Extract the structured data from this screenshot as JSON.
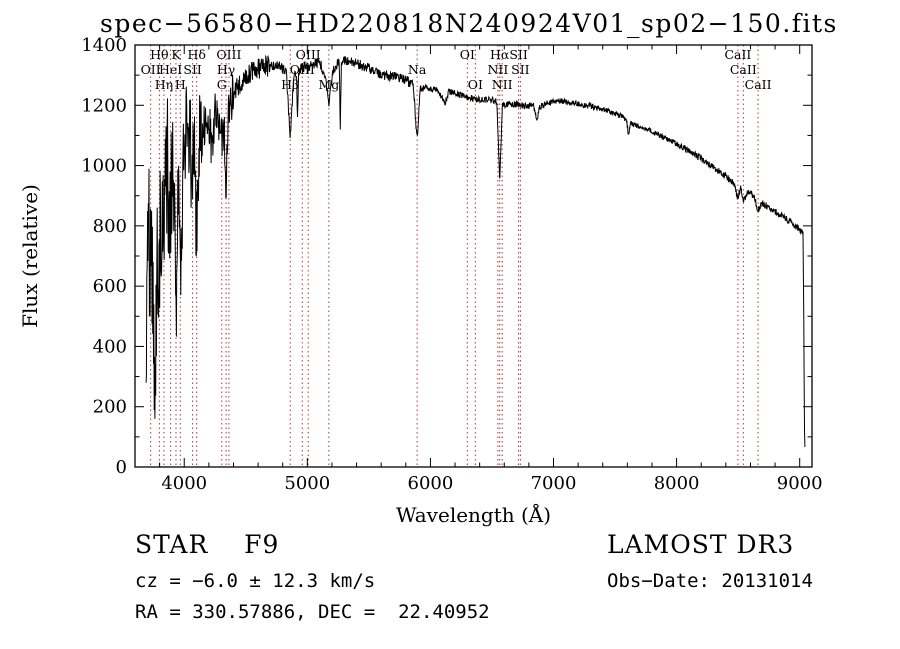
{
  "chart_data": {
    "type": "line",
    "title": "spec−56580−HD220818N240924V01_sp02−150.fits",
    "xlabel": "Wavelength (Å)",
    "ylabel": "Flux (relative)",
    "xlim": [
      3600,
      9100
    ],
    "ylim": [
      0,
      1400
    ],
    "xticks": [
      4000,
      5000,
      6000,
      7000,
      8000,
      9000
    ],
    "yticks": [
      0,
      200,
      400,
      600,
      800,
      1000,
      1200,
      1400
    ],
    "x_minor_step": 200,
    "y_minor_step": 100,
    "grid": false,
    "legend": false,
    "line_color": "#000000",
    "spectral_line_color": "#a83a3a",
    "spectral_lines": [
      {
        "wavelength": 3727,
        "label": "OII",
        "row": 2
      },
      {
        "wavelength": 3798,
        "label": "Hθ",
        "row": 1
      },
      {
        "wavelength": 3835,
        "label": "Hη",
        "row": 3
      },
      {
        "wavelength": 3889,
        "label": "HeI",
        "row": 2
      },
      {
        "wavelength": 3933,
        "label": "K",
        "row": 1
      },
      {
        "wavelength": 3968,
        "label": "H",
        "row": 3
      },
      {
        "wavelength": 4068,
        "label": "SII",
        "row": 2
      },
      {
        "wavelength": 4101,
        "label": "Hδ",
        "row": 1
      },
      {
        "wavelength": 4305,
        "label": "G",
        "row": 3
      },
      {
        "wavelength": 4340,
        "label": "Hγ",
        "row": 2
      },
      {
        "wavelength": 4363,
        "label": "OIII",
        "row": 1
      },
      {
        "wavelength": 4861,
        "label": "Hβ",
        "row": 3
      },
      {
        "wavelength": 4959,
        "label": "OIII",
        "row": 2
      },
      {
        "wavelength": 5007,
        "label": "OIII",
        "row": 1
      },
      {
        "wavelength": 5175,
        "label": "Mg",
        "row": 3
      },
      {
        "wavelength": 5892,
        "label": "Na",
        "row": 2
      },
      {
        "wavelength": 6300,
        "label": "OI",
        "row": 1
      },
      {
        "wavelength": 6365,
        "label": "OI",
        "row": 3
      },
      {
        "wavelength": 6548,
        "label": "NII",
        "row": 2
      },
      {
        "wavelength": 6563,
        "label": "Hα",
        "row": 1
      },
      {
        "wavelength": 6583,
        "label": "NII",
        "row": 3
      },
      {
        "wavelength": 6716,
        "label": "SII",
        "row": 1
      },
      {
        "wavelength": 6731,
        "label": "SII",
        "row": 2
      },
      {
        "wavelength": 8498,
        "label": "CaII",
        "row": 1
      },
      {
        "wavelength": 8542,
        "label": "CaII",
        "row": 2
      },
      {
        "wavelength": 8662,
        "label": "CaII",
        "row": 3
      }
    ],
    "noise_regions": [
      {
        "from": 3690,
        "to": 3900,
        "amp": 250
      },
      {
        "from": 3900,
        "to": 4150,
        "amp": 170
      },
      {
        "from": 4150,
        "to": 4400,
        "amp": 75
      },
      {
        "from": 4400,
        "to": 4700,
        "amp": 35
      },
      {
        "from": 4700,
        "to": 5900,
        "amp": 17
      },
      {
        "from": 5900,
        "to": 7000,
        "amp": 11
      },
      {
        "from": 7000,
        "to": 8000,
        "amp": 9
      },
      {
        "from": 8000,
        "to": 9045,
        "amp": 11
      }
    ],
    "spectrum": [
      [
        3690,
        500
      ],
      [
        3715,
        760
      ],
      [
        3740,
        560
      ],
      [
        3762,
        320
      ],
      [
        3780,
        640
      ],
      [
        3798,
        700
      ],
      [
        3815,
        900
      ],
      [
        3835,
        780
      ],
      [
        3855,
        1020
      ],
      [
        3875,
        950
      ],
      [
        3889,
        840
      ],
      [
        3910,
        1060
      ],
      [
        3933,
        520
      ],
      [
        3950,
        930
      ],
      [
        3968,
        560
      ],
      [
        3990,
        1010
      ],
      [
        4020,
        1130
      ],
      [
        4045,
        1090
      ],
      [
        4068,
        960
      ],
      [
        4085,
        1040
      ],
      [
        4101,
        760
      ],
      [
        4125,
        1090
      ],
      [
        4160,
        1130
      ],
      [
        4200,
        1160
      ],
      [
        4226,
        1040
      ],
      [
        4250,
        1170
      ],
      [
        4290,
        1140
      ],
      [
        4305,
        1080
      ],
      [
        4325,
        1120
      ],
      [
        4340,
        930
      ],
      [
        4360,
        1180
      ],
      [
        4400,
        1240
      ],
      [
        4450,
        1270
      ],
      [
        4500,
        1295
      ],
      [
        4560,
        1315
      ],
      [
        4620,
        1325
      ],
      [
        4700,
        1332
      ],
      [
        4780,
        1332
      ],
      [
        4830,
        1305
      ],
      [
        4861,
        1090
      ],
      [
        4890,
        1300
      ],
      [
        4912,
        1310
      ],
      [
        4920,
        1150
      ],
      [
        4930,
        1310
      ],
      [
        4957,
        1330
      ],
      [
        5010,
        1325
      ],
      [
        5060,
        1340
      ],
      [
        5110,
        1335
      ],
      [
        5140,
        1300
      ],
      [
        5167,
        1240
      ],
      [
        5175,
        1210
      ],
      [
        5185,
        1250
      ],
      [
        5210,
        1320
      ],
      [
        5260,
        1345
      ],
      [
        5268,
        1130
      ],
      [
        5276,
        1340
      ],
      [
        5320,
        1350
      ],
      [
        5380,
        1340
      ],
      [
        5440,
        1332
      ],
      [
        5500,
        1322
      ],
      [
        5560,
        1312
      ],
      [
        5620,
        1302
      ],
      [
        5680,
        1296
      ],
      [
        5740,
        1290
      ],
      [
        5800,
        1282
      ],
      [
        5860,
        1272
      ],
      [
        5889,
        1100
      ],
      [
        5896,
        1090
      ],
      [
        5915,
        1255
      ],
      [
        5980,
        1258
      ],
      [
        6050,
        1252
      ],
      [
        6122,
        1210
      ],
      [
        6150,
        1245
      ],
      [
        6200,
        1240
      ],
      [
        6270,
        1232
      ],
      [
        6300,
        1228
      ],
      [
        6360,
        1222
      ],
      [
        6430,
        1220
      ],
      [
        6490,
        1218
      ],
      [
        6540,
        1212
      ],
      [
        6563,
        950
      ],
      [
        6585,
        1200
      ],
      [
        6640,
        1205
      ],
      [
        6700,
        1202
      ],
      [
        6770,
        1198
      ],
      [
        6840,
        1200
      ],
      [
        6867,
        1150
      ],
      [
        6885,
        1195
      ],
      [
        6950,
        1205
      ],
      [
        7000,
        1212
      ],
      [
        7060,
        1215
      ],
      [
        7120,
        1210
      ],
      [
        7180,
        1206
      ],
      [
        7250,
        1200
      ],
      [
        7320,
        1196
      ],
      [
        7390,
        1188
      ],
      [
        7460,
        1178
      ],
      [
        7520,
        1168
      ],
      [
        7560,
        1162
      ],
      [
        7594,
        1148
      ],
      [
        7608,
        1105
      ],
      [
        7626,
        1140
      ],
      [
        7700,
        1130
      ],
      [
        7780,
        1116
      ],
      [
        7860,
        1100
      ],
      [
        7940,
        1085
      ],
      [
        8020,
        1068
      ],
      [
        8100,
        1048
      ],
      [
        8180,
        1028
      ],
      [
        8260,
        1005
      ],
      [
        8340,
        982
      ],
      [
        8410,
        960
      ],
      [
        8460,
        945
      ],
      [
        8498,
        892
      ],
      [
        8520,
        930
      ],
      [
        8542,
        885
      ],
      [
        8585,
        915
      ],
      [
        8625,
        900
      ],
      [
        8662,
        852
      ],
      [
        8700,
        875
      ],
      [
        8760,
        858
      ],
      [
        8820,
        842
      ],
      [
        8880,
        826
      ],
      [
        8940,
        808
      ],
      [
        9000,
        788
      ],
      [
        9015,
        780
      ],
      [
        9027,
        770
      ],
      [
        9033,
        500
      ],
      [
        9039,
        120
      ],
      [
        9042,
        60
      ]
    ]
  },
  "annotations": {
    "classification": "STAR    F9",
    "survey": "LAMOST DR3",
    "cz": "cz = −6.0 ± 12.3 km/s",
    "obs_date": "Obs−Date: 20131014",
    "ra_dec": "RA = 330.57886, DEC =  22.40952"
  }
}
